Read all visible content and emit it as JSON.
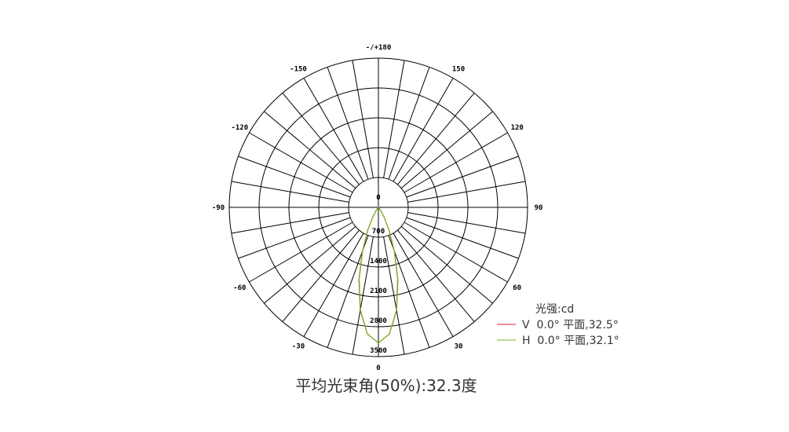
{
  "chart_data": {
    "type": "polar",
    "title": "平均光束角(50%):32.3度",
    "radial_axis": {
      "unit_label": "光强:cd",
      "range": [
        0,
        3500
      ],
      "tick_labels": [
        "0",
        "700",
        "1400",
        "2100",
        "2800",
        "3500"
      ],
      "ticks": [
        0,
        700,
        1400,
        2100,
        2800,
        3500
      ]
    },
    "angular_axis": {
      "grid_step_deg": 10,
      "zero_direction": "bottom",
      "tick_labels": [
        {
          "angle": 0,
          "label": "0"
        },
        {
          "angle": 30,
          "label": "30"
        },
        {
          "angle": 60,
          "label": "60"
        },
        {
          "angle": 90,
          "label": "90"
        },
        {
          "angle": 120,
          "label": "120"
        },
        {
          "angle": 150,
          "label": "150"
        },
        {
          "angle": 180,
          "label": "-/+180"
        },
        {
          "angle": -150,
          "label": "-150"
        },
        {
          "angle": -120,
          "label": "-120"
        },
        {
          "angle": -90,
          "label": "-90"
        },
        {
          "angle": -60,
          "label": "-60"
        },
        {
          "angle": -30,
          "label": "-30"
        }
      ]
    },
    "grid": true,
    "legend_placement": "bottom-right",
    "series": [
      {
        "name": "V  0.0° 平面,32.5°",
        "color": "#e8191e",
        "angles": [
          -50,
          -45,
          -40,
          -35,
          -30,
          -25,
          -20,
          -15,
          -10,
          -5,
          0,
          5,
          10,
          15,
          20,
          25,
          30,
          35,
          40,
          45,
          50
        ],
        "values": [
          0,
          10,
          34,
          107,
          276,
          597,
          1104,
          1764,
          2451,
          2980,
          3180,
          2980,
          2451,
          1764,
          1104,
          597,
          276,
          107,
          34,
          10,
          0
        ]
      },
      {
        "name": "H  0.0° 平面,32.1°",
        "color": "#6cc12a",
        "angles": [
          -50,
          -45,
          -40,
          -35,
          -30,
          -25,
          -20,
          -15,
          -10,
          -5,
          0,
          5,
          10,
          15,
          20,
          25,
          30,
          35,
          40,
          45,
          50
        ],
        "values": [
          0,
          9,
          31,
          99,
          260,
          574,
          1077,
          1740,
          2436,
          2975,
          3180,
          2975,
          2436,
          1740,
          1077,
          574,
          260,
          99,
          31,
          9,
          0
        ]
      }
    ]
  }
}
